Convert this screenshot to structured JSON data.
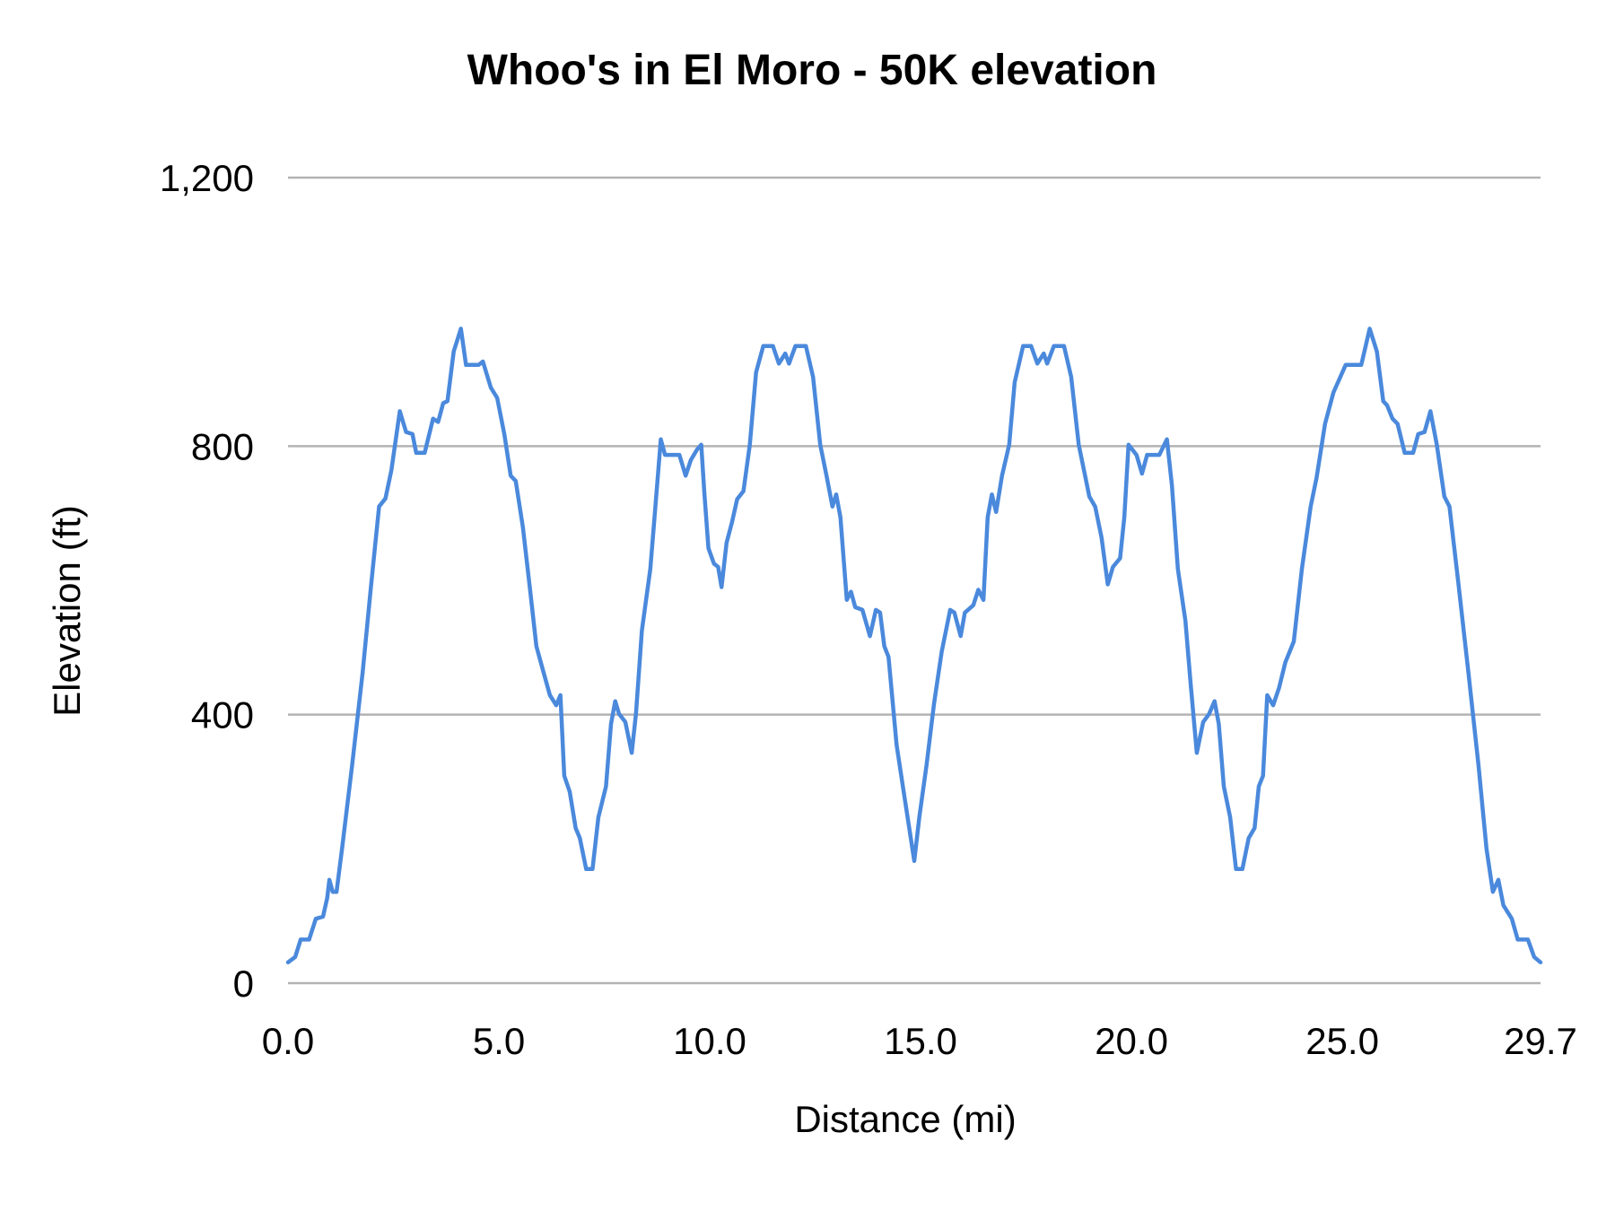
{
  "chart_data": {
    "type": "line",
    "title": "Whoo's in El Moro - 50K elevation",
    "xlabel": "Distance (mi)",
    "ylabel": "Elevation (ft)",
    "xlim": [
      0,
      29.7
    ],
    "ylim": [
      0,
      1200
    ],
    "x_ticks": [
      "0.0",
      "5.0",
      "10.0",
      "15.0",
      "20.0",
      "25.0",
      "29.7"
    ],
    "x_tick_values": [
      0,
      5,
      10,
      15,
      20,
      25,
      29.7
    ],
    "y_ticks": [
      "0",
      "400",
      "800",
      "1,200"
    ],
    "y_tick_values": [
      0,
      400,
      800,
      1200
    ],
    "grid": "horizontal",
    "legend": "none",
    "line_color": "#4a89dc",
    "grid_color": "#b3b3b3",
    "series": [
      {
        "x": [
          0,
          0.17,
          0.3,
          0.5,
          0.66,
          0.83,
          0.93,
          0.98,
          1.06,
          1.15,
          1.28,
          1.52,
          1.77,
          1.96,
          2.16,
          2.31,
          2.45,
          2.65,
          2.8,
          2.95,
          3.04,
          3.24,
          3.44,
          3.56,
          3.68,
          3.78,
          3.93,
          4.1,
          4.22,
          4.52,
          4.62,
          4.81,
          4.96,
          5.13,
          5.28,
          5.4,
          5.57,
          5.74,
          5.89,
          6.06,
          6.21,
          6.36,
          6.46,
          6.55,
          6.68,
          6.82,
          6.92,
          7.07,
          7.22,
          7.36,
          7.54,
          7.66,
          7.76,
          7.85,
          8.0,
          8.15,
          8.25,
          8.39,
          8.59,
          8.69,
          8.84,
          8.94,
          9.28,
          9.43,
          9.55,
          9.7,
          9.8,
          9.87,
          9.97,
          10.1,
          10.2,
          10.28,
          10.4,
          10.53,
          10.65,
          10.8,
          10.95,
          11.1,
          11.27,
          11.5,
          11.64,
          11.79,
          11.88,
          12.03,
          12.28,
          12.45,
          12.62,
          12.77,
          12.91,
          13.0,
          13.1,
          13.25,
          13.35,
          13.45,
          13.62,
          13.8,
          13.94,
          14.04,
          14.14,
          14.24,
          14.43,
          14.58,
          14.73,
          14.85,
          14.97,
          15.14,
          15.32,
          15.5,
          15.7,
          15.8,
          15.95,
          16.05,
          16.25,
          16.37,
          16.49,
          16.59,
          16.69,
          16.79,
          16.93,
          17.1,
          17.23,
          17.43,
          17.62,
          17.77,
          17.92,
          18.0,
          18.16,
          18.4,
          18.57,
          18.75,
          18.9,
          19.0,
          19.14,
          19.29,
          19.44,
          19.56,
          19.73,
          19.83,
          19.93,
          20.12,
          20.25,
          20.37,
          20.66,
          20.84,
          20.96,
          21.1,
          21.28,
          21.4,
          21.55,
          21.7,
          21.84,
          21.97,
          22.07,
          22.19,
          22.34,
          22.48,
          22.63,
          22.78,
          22.92,
          23.02,
          23.12,
          23.22,
          23.36,
          23.5,
          23.65,
          23.85,
          24.04,
          24.25,
          24.39,
          24.59,
          24.79,
          25.08,
          25.45,
          25.65,
          25.82,
          25.97,
          26.06,
          26.19,
          26.31,
          26.48,
          26.68,
          26.8,
          26.95,
          27.09,
          27.24,
          27.42,
          27.54,
          27.74,
          27.99,
          28.23,
          28.42,
          28.57,
          28.7,
          28.82,
          29.02,
          29.16,
          29.4,
          29.55,
          29.7
        ],
        "y": [
          31,
          39,
          65,
          65,
          96,
          99,
          127,
          154,
          136,
          136,
          200,
          324,
          463,
          586,
          710,
          722,
          764,
          852,
          821,
          818,
          790,
          790,
          841,
          836,
          864,
          867,
          941,
          975,
          921,
          921,
          926,
          887,
          872,
          818,
          756,
          748,
          679,
          586,
          502,
          463,
          429,
          414,
          429,
          309,
          285,
          231,
          216,
          170,
          170,
          247,
          293,
          386,
          420,
          401,
          389,
          343,
          401,
          525,
          617,
          694,
          810,
          787,
          787,
          756,
          779,
          795,
          802,
          733,
          648,
          625,
          620,
          590,
          656,
          687,
          721,
          733,
          802,
          910,
          949,
          949,
          923,
          938,
          923,
          949,
          949,
          903,
          802,
          756,
          710,
          728,
          694,
          571,
          583,
          560,
          556,
          517,
          556,
          552,
          502,
          486,
          355,
          293,
          231,
          182,
          247,
          324,
          417,
          494,
          556,
          552,
          517,
          552,
          563,
          586,
          571,
          694,
          728,
          702,
          756,
          802,
          895,
          949,
          949,
          923,
          938,
          923,
          949,
          949,
          903,
          802,
          756,
          725,
          710,
          664,
          594,
          620,
          633,
          694,
          802,
          787,
          759,
          787,
          787,
          810,
          741,
          617,
          540,
          448,
          343,
          389,
          401,
          420,
          386,
          293,
          247,
          170,
          170,
          216,
          231,
          293,
          309,
          429,
          414,
          440,
          478,
          509,
          617,
          710,
          753,
          833,
          880,
          921,
          921,
          975,
          941,
          867,
          861,
          841,
          833,
          790,
          790,
          818,
          821,
          852,
          802,
          725,
          710,
          602,
          463,
          324,
          200,
          136,
          154,
          116,
          96,
          65,
          65,
          39,
          31
        ]
      }
    ]
  }
}
